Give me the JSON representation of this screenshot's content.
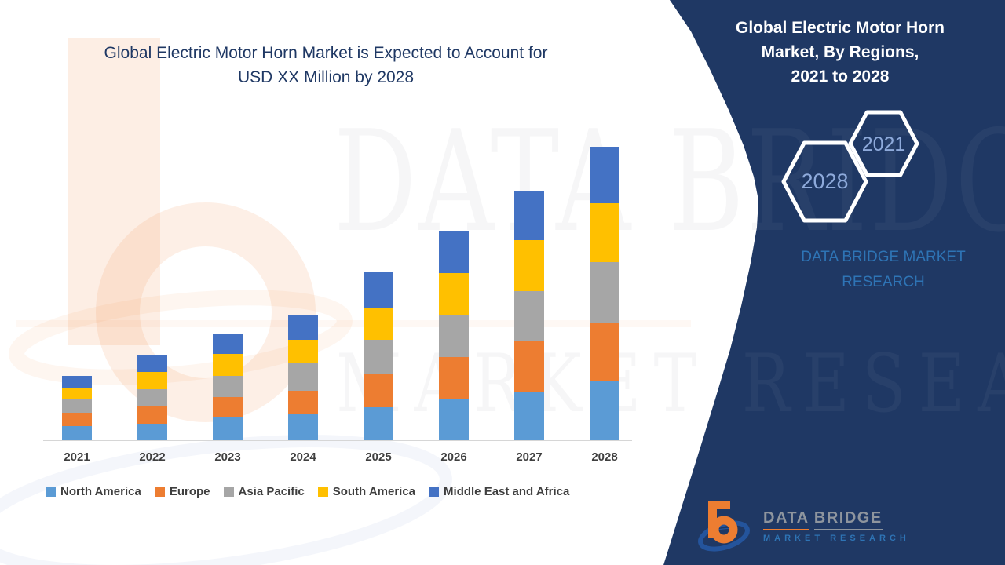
{
  "left_title": {
    "line1": "Global Electric Motor Horn Market is Expected to Account for",
    "line2": "USD XX Million by 2028"
  },
  "panel": {
    "title_lines": [
      "Global Electric Motor Horn",
      "Market, By Regions,",
      "2021 to 2028"
    ],
    "hex_small_label": "2021",
    "hex_large_label": "2028",
    "brand_line1": "DATA BRIDGE MARKET",
    "brand_line2": "RESEARCH",
    "bg_color": "#1F3864",
    "brand_color": "#2E74B5",
    "hex_text_color": "#8EAADB"
  },
  "logo": {
    "word1": "DATA",
    "word2": "BRIDGE",
    "name_bottom": "MARKET RESEARCH",
    "b_color": "#ED7D31",
    "swoosh_color": "#24549C"
  },
  "watermark": {
    "text_top": "DATA BRIDGE",
    "text_bottom": "MARKET RESEARCH"
  },
  "chart_data": {
    "type": "bar",
    "stacked": true,
    "title": "Global Electric Motor Horn Market is Expected to Account for USD XX Million by 2028",
    "xlabel": "",
    "ylabel": "",
    "units": "relative height units (y-axis unlabeled in chart; market value shown as USD XX Million)",
    "grid": false,
    "y_axis_visible": false,
    "legend_position": "bottom",
    "categories": [
      "2021",
      "2022",
      "2023",
      "2024",
      "2025",
      "2026",
      "2027",
      "2028"
    ],
    "series": [
      {
        "name": "North America",
        "color": "#5B9BD5",
        "values": [
          18,
          21,
          29,
          33,
          42,
          52,
          62,
          75
        ]
      },
      {
        "name": "Europe",
        "color": "#ED7D31",
        "values": [
          17,
          22,
          26,
          30,
          43,
          54,
          64,
          75
        ]
      },
      {
        "name": "Asia Pacific",
        "color": "#A6A6A6",
        "values": [
          17,
          22,
          27,
          35,
          43,
          54,
          64,
          77
        ]
      },
      {
        "name": "South America",
        "color": "#FFC000",
        "values": [
          15,
          22,
          28,
          30,
          41,
          53,
          65,
          75
        ]
      },
      {
        "name": "Middle East and Africa",
        "color": "#4472C4",
        "values": [
          15,
          21,
          26,
          32,
          45,
          53,
          63,
          72
        ]
      }
    ],
    "totals": [
      82,
      108,
      136,
      160,
      214,
      266,
      318,
      374
    ]
  }
}
